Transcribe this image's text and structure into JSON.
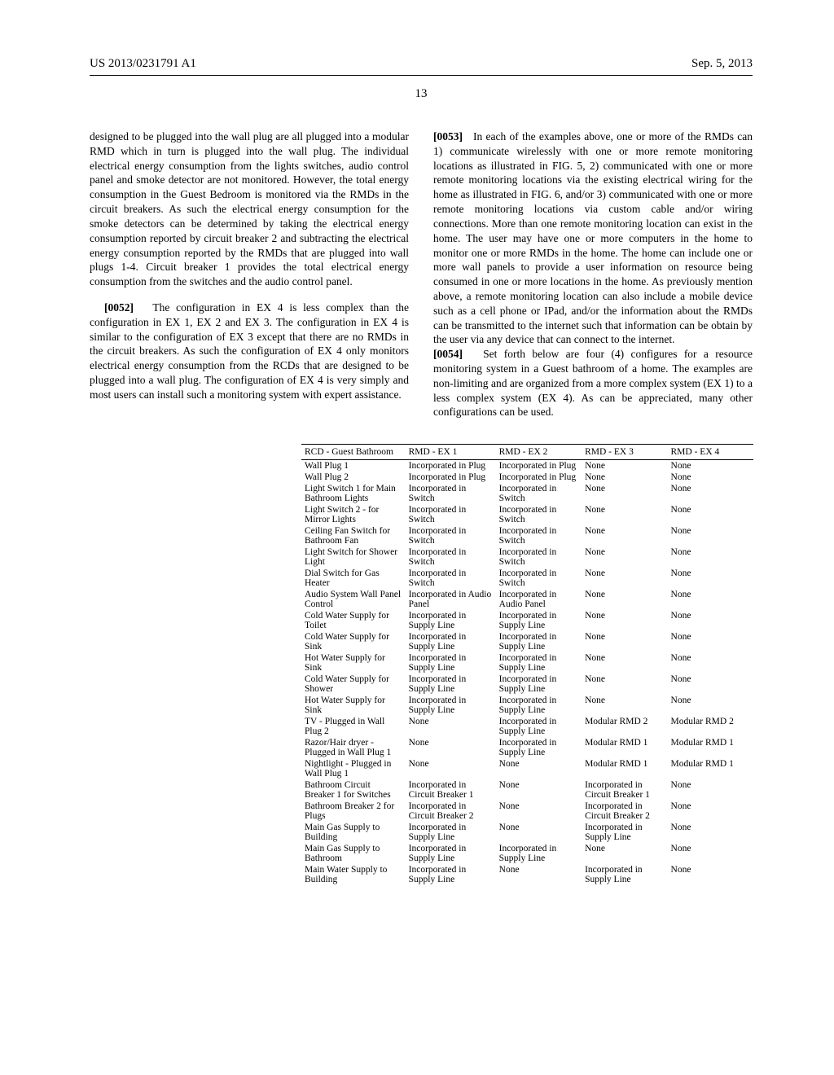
{
  "header": {
    "left": "US 2013/0231791 A1",
    "right": "Sep. 5, 2013"
  },
  "page_number": "13",
  "left_column": {
    "p1": "designed to be plugged into the wall plug are all plugged into a modular RMD which in turn is plugged into the wall plug. The individual electrical energy consumption from the lights switches, audio control panel and smoke detector are not monitored. However, the total energy consumption in the Guest Bedroom is monitored via the RMDs in the circuit breakers. As such the electrical energy consumption for the smoke detectors can be determined by taking the electrical energy consumption reported by circuit breaker 2 and subtracting the electrical energy consumption reported by the RMDs that are plugged into wall plugs 1-4. Circuit breaker 1 provides the total electrical energy consumption from the switches and the audio control panel.",
    "p2_num": "[0052]",
    "p2": "The configuration in EX 4 is less complex than the configuration in EX 1, EX 2 and EX 3. The configuration in EX 4 is similar to the configuration of EX 3 except that there are no RMDs in the circuit breakers. As such the configuration of EX 4 only monitors electrical energy consumption from the RCDs that are designed to be plugged into a wall plug. The configuration of EX 4 is very simply and most users can install such a monitoring system with expert assistance."
  },
  "right_column": {
    "p1_num": "[0053]",
    "p1": "In each of the examples above, one or more of the RMDs can 1) communicate wirelessly with one or more remote monitoring locations as illustrated in FIG. 5, 2) communicated with one or more remote monitoring locations via the existing electrical wiring for the home as illustrated in FIG. 6, and/or 3) communicated with one or more remote monitoring locations via custom cable and/or wiring connections. More than one remote monitoring location can exist in the home. The user may have one or more computers in the home to monitor one or more RMDs in the home. The home can include one or more wall panels to provide a user information on resource being consumed in one or more locations in the home. As previously mention above, a remote monitoring location can also include a mobile device such as a cell phone or IPad, and/or the information about the RMDs can be transmitted to the internet such that information can be obtain by the user via any device that can connect to the internet.",
    "p2_num": "[0054]",
    "p2": "Set forth below are four (4) configures for a resource monitoring system in a Guest bathroom of a home. The examples are non-limiting and are organized from a more complex system (EX 1) to a less complex system (EX 4). As can be appreciated, many other configurations can be used."
  },
  "table": {
    "headers": [
      "RCD - Guest Bathroom",
      "RMD - EX 1",
      "RMD - EX 2",
      "RMD - EX 3",
      "RMD - EX 4"
    ],
    "rows": [
      [
        "Wall Plug 1",
        "Incorporated in Plug",
        "Incorporated in Plug",
        "None",
        "None"
      ],
      [
        "Wall Plug 2",
        "Incorporated in Plug",
        "Incorporated in Plug",
        "None",
        "None"
      ],
      [
        "Light Switch 1 for Main Bathroom Lights",
        "Incorporated in Switch",
        "Incorporated in Switch",
        "None",
        "None"
      ],
      [
        "Light Switch 2 - for Mirror Lights",
        "Incorporated in Switch",
        "Incorporated in Switch",
        "None",
        "None"
      ],
      [
        "Ceiling Fan Switch for Bathroom Fan",
        "Incorporated in Switch",
        "Incorporated in Switch",
        "None",
        "None"
      ],
      [
        "Light Switch for Shower Light",
        "Incorporated in Switch",
        "Incorporated in Switch",
        "None",
        "None"
      ],
      [
        "Dial Switch for Gas Heater",
        "Incorporated in Switch",
        "Incorporated in Switch",
        "None",
        "None"
      ],
      [
        "Audio System Wall Panel Control",
        "Incorporated in Audio Panel",
        "Incorporated in Audio Panel",
        "None",
        "None"
      ],
      [
        "Cold Water Supply for Toilet",
        "Incorporated in Supply Line",
        "Incorporated in Supply Line",
        "None",
        "None"
      ],
      [
        "Cold Water Supply for Sink",
        "Incorporated in Supply Line",
        "Incorporated in Supply Line",
        "None",
        "None"
      ],
      [
        "Hot Water Supply for Sink",
        "Incorporated in Supply Line",
        "Incorporated in Supply Line",
        "None",
        "None"
      ],
      [
        "Cold Water Supply for Shower",
        "Incorporated in Supply Line",
        "Incorporated in Supply Line",
        "None",
        "None"
      ],
      [
        "Hot Water Supply for Sink",
        "Incorporated in Supply Line",
        "Incorporated in Supply Line",
        "None",
        "None"
      ],
      [
        "TV - Plugged in Wall Plug 2",
        "None",
        "Incorporated in Supply Line",
        "Modular RMD 2",
        "Modular RMD 2"
      ],
      [
        "Razor/Hair dryer - Plugged in Wall Plug 1",
        "None",
        "Incorporated in Supply Line",
        "Modular RMD 1",
        "Modular RMD 1"
      ],
      [
        "Nightlight - Plugged in Wall Plug 1",
        "None",
        "None",
        "Modular RMD 1",
        "Modular RMD 1"
      ],
      [
        "Bathroom Circuit Breaker 1 for Switches",
        "Incorporated in Circuit Breaker 1",
        "None",
        "Incorporated in Circuit Breaker 1",
        "None"
      ],
      [
        "Bathroom Breaker 2 for Plugs",
        "Incorporated in Circuit Breaker 2",
        "None",
        "Incorporated in Circuit Breaker 2",
        "None"
      ],
      [
        "Main Gas Supply to Building",
        "Incorporated in Supply Line",
        "None",
        "Incorporated in Supply Line",
        "None"
      ],
      [
        "Main Gas Supply to Bathroom",
        "Incorporated in Supply Line",
        "Incorporated in Supply Line",
        "None",
        "None"
      ],
      [
        "Main Water Supply to Building",
        "Incorporated in Supply Line",
        "None",
        "Incorporated in Supply Line",
        "None"
      ]
    ]
  }
}
